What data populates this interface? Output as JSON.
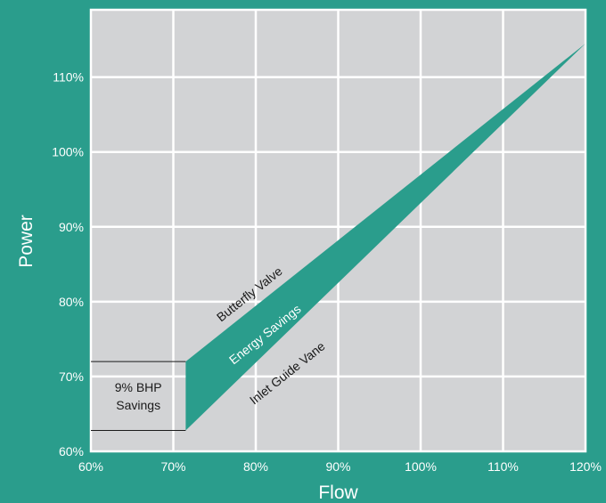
{
  "chart_data": {
    "type": "area",
    "xlabel": "Flow",
    "ylabel": "Power",
    "xlim": [
      60,
      120
    ],
    "ylim": [
      60,
      119
    ],
    "x_ticks": [
      "60%",
      "70%",
      "80%",
      "90%",
      "100%",
      "110%",
      "120%"
    ],
    "y_ticks": [
      "60%",
      "70%",
      "80%",
      "90%",
      "100%",
      "110%"
    ],
    "grid": true,
    "series": [
      {
        "name": "Butterfly Valve",
        "x": [
          71.5,
          120
        ],
        "y": [
          72.0,
          114.5
        ]
      },
      {
        "name": "Inlet Guide Vane",
        "x": [
          71.5,
          120
        ],
        "y": [
          62.8,
          114.5
        ]
      }
    ],
    "band_label": "Energy Savings",
    "savings_callout": {
      "line1": "9% BHP",
      "line2": "Savings",
      "x": 71.5,
      "y_top": 72.0,
      "y_bottom": 62.8
    },
    "colors": {
      "background": "#2a9d8c",
      "plot": "#d2d3d5",
      "band": "#2a9d8c",
      "grid": "#ffffff"
    }
  }
}
